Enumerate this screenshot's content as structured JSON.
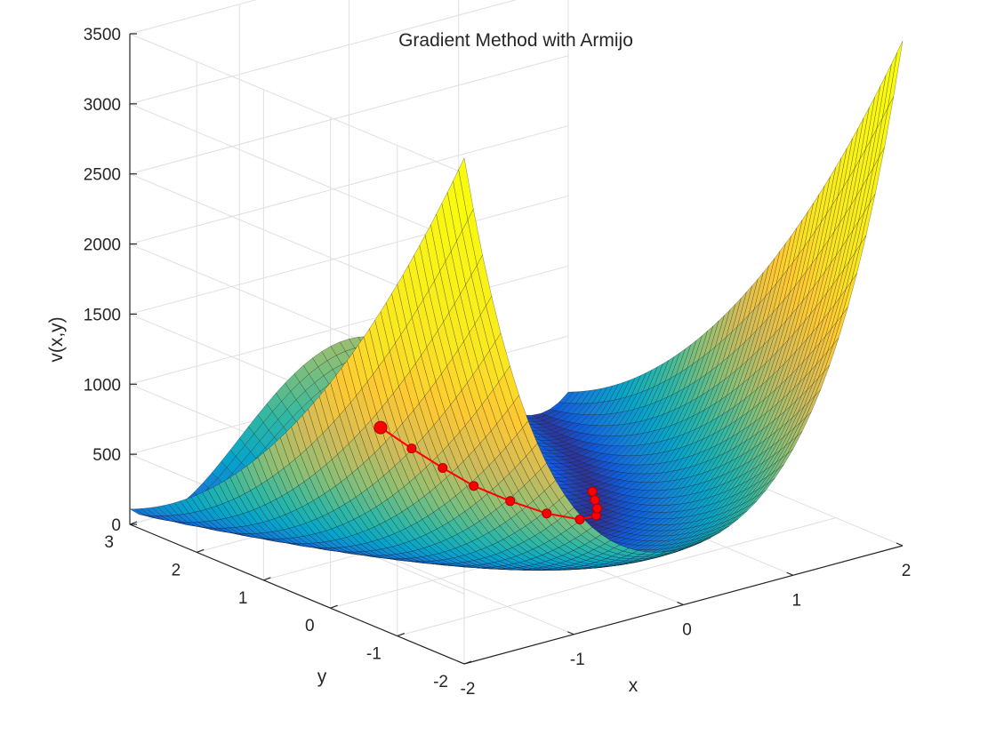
{
  "chart_data": {
    "type": "surface3d",
    "title": "Gradient Method with Armijo",
    "xlabel": "x",
    "ylabel": "y",
    "zlabel": "v(x,y)",
    "xlim": [
      -2,
      2
    ],
    "ylim": [
      -2,
      3
    ],
    "zlim": [
      0,
      3500
    ],
    "xticks": [
      "-2",
      "-1",
      "0",
      "1",
      "2"
    ],
    "yticks": [
      "-2",
      "-1",
      "0",
      "1",
      "2",
      "3"
    ],
    "zticks": [
      "0",
      "500",
      "1000",
      "1500",
      "2000",
      "2500",
      "3000",
      "3500"
    ],
    "grid": true,
    "colormap": "parula",
    "surface_function": "100*(y - x^2)^2 + (1 - x)^2",
    "path_color": "#ff0000",
    "path": [
      {
        "x": -0.2,
        "y": 2.2,
        "z": 470
      },
      {
        "x": -0.1,
        "y": 1.9,
        "z": 360
      },
      {
        "x": 0.0,
        "y": 1.6,
        "z": 260
      },
      {
        "x": 0.1,
        "y": 1.3,
        "z": 170
      },
      {
        "x": 0.25,
        "y": 1.0,
        "z": 90
      },
      {
        "x": 0.4,
        "y": 0.7,
        "z": 30
      },
      {
        "x": 0.55,
        "y": 0.45,
        "z": 5
      },
      {
        "x": 0.7,
        "y": 0.45,
        "z": 2
      },
      {
        "x": 0.8,
        "y": 0.6,
        "z": 1
      },
      {
        "x": 0.9,
        "y": 0.8,
        "z": 0.5
      },
      {
        "x": 1.0,
        "y": 1.0,
        "z": 0
      }
    ]
  }
}
